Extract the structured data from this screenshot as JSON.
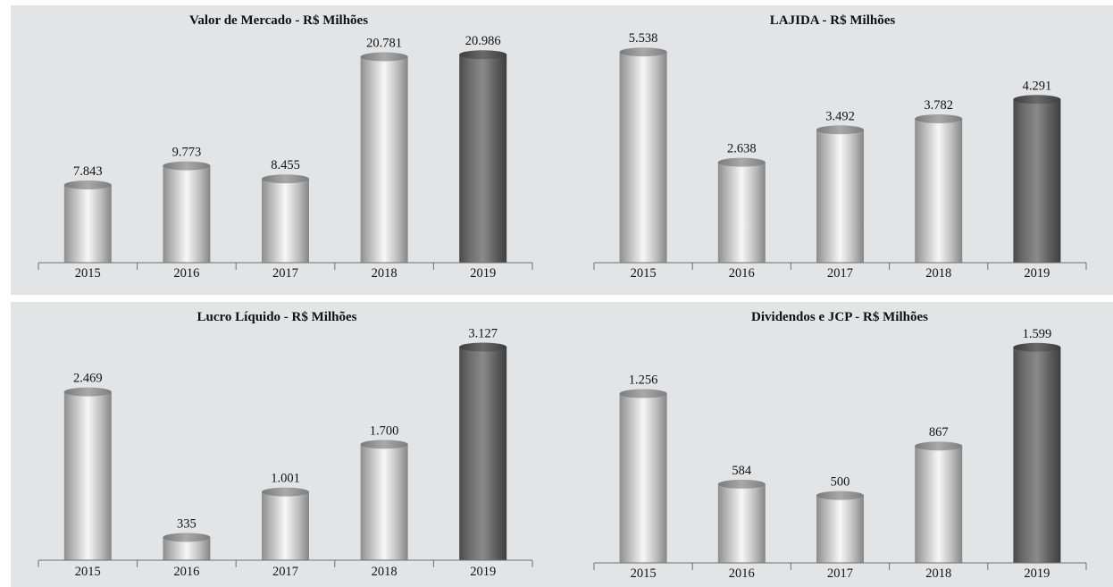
{
  "chart_data": [
    {
      "type": "bar",
      "title": "Valor de Mercado - R$ Milhões",
      "categories": [
        "2015",
        "2016",
        "2017",
        "2018",
        "2019"
      ],
      "values": [
        7843,
        9773,
        8455,
        20781,
        20986
      ],
      "value_labels": [
        "7.843",
        "9.773",
        "8.455",
        "20.781",
        "20.986"
      ],
      "ylim": [
        0,
        23800
      ],
      "grid": false,
      "highlight_color": "#5c5c5c",
      "bar_color": "#c8c8c8"
    },
    {
      "type": "bar",
      "title": "LAJIDA - R$ Milhões",
      "categories": [
        "2015",
        "2016",
        "2017",
        "2018",
        "2019"
      ],
      "values": [
        5538,
        2638,
        3492,
        3782,
        4291
      ],
      "value_labels": [
        "5.538",
        "2.638",
        "3.492",
        "3.782",
        "4.291"
      ],
      "ylim": [
        0,
        6200
      ],
      "grid": false,
      "highlight_color": "#5c5c5c",
      "bar_color": "#c8c8c8"
    },
    {
      "type": "bar",
      "title": "Lucro Líquido - R$ Milhões",
      "categories": [
        "2015",
        "2016",
        "2017",
        "2018",
        "2019"
      ],
      "values": [
        2469,
        335,
        1001,
        1700,
        3127
      ],
      "value_labels": [
        "2.469",
        "335",
        "1.001",
        "1.700",
        "3.127"
      ],
      "ylim": [
        0,
        3500
      ],
      "grid": false,
      "highlight_color": "#5c5c5c",
      "bar_color": "#c8c8c8"
    },
    {
      "type": "bar",
      "title": "Dividendos e JCP - R$ Milhões",
      "categories": [
        "2015",
        "2016",
        "2017",
        "2018",
        "2019"
      ],
      "values": [
        1256,
        584,
        500,
        867,
        1599
      ],
      "value_labels": [
        "1.256",
        "584",
        "500",
        "867",
        "1.599"
      ],
      "ylim": [
        0,
        1790
      ],
      "grid": false,
      "highlight_color": "#5c5c5c",
      "bar_color": "#c8c8c8"
    }
  ]
}
